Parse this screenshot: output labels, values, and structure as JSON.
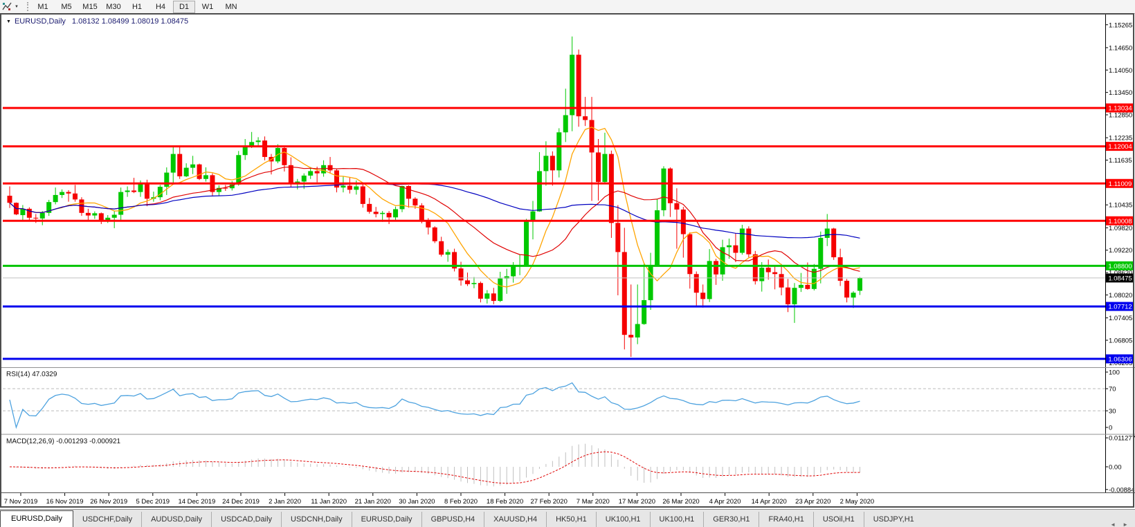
{
  "icons": {
    "caret_down": "▼",
    "title_triangle": "▼",
    "scroll_left": "◄",
    "scroll_right": "►"
  },
  "toolbar": {
    "timeframes": [
      "M1",
      "M5",
      "M15",
      "M30",
      "H1",
      "H4",
      "D1",
      "W1",
      "MN"
    ],
    "active_timeframe": "D1"
  },
  "chart": {
    "title_symbol": "EURUSD,Daily",
    "title_ohlc": "1.08132 1.08499 1.08019 1.08475",
    "price_axis_labels": [
      "1.15265",
      "1.14650",
      "1.14050",
      "1.13450",
      "1.12850",
      "1.12235",
      "1.11635",
      "1.10435",
      "1.09820",
      "1.09220",
      "1.08620",
      "1.08020",
      "1.07405",
      "1.06805",
      "1.06205"
    ],
    "hlines": [
      {
        "label": "1.13034",
        "price": 1.13034,
        "color": "#ff0000"
      },
      {
        "label": "1.12004",
        "price": 1.12004,
        "color": "#ff0000"
      },
      {
        "label": "1.11009",
        "price": 1.11009,
        "color": "#ff0000"
      },
      {
        "label": "1.10008",
        "price": 1.10008,
        "color": "#ff0000"
      },
      {
        "label": "1.08800",
        "price": 1.088,
        "color": "#00c400"
      },
      {
        "label": "1.07712",
        "price": 1.07712,
        "color": "#0000ee"
      },
      {
        "label": "1.06306",
        "price": 1.06306,
        "color": "#0000ee"
      }
    ],
    "bid": {
      "label": "1.08475",
      "price": 1.08475,
      "line_color": "#c0c0c0",
      "badge_bg": "#000000"
    },
    "date_labels": [
      "7 Nov 2019",
      "16 Nov 2019",
      "26 Nov 2019",
      "5 Dec 2019",
      "14 Dec 2019",
      "24 Dec 2019",
      "2 Jan 2020",
      "11 Jan 2020",
      "21 Jan 2020",
      "30 Jan 2020",
      "8 Feb 2020",
      "18 Feb 2020",
      "27 Feb 2020",
      "7 Mar 2020",
      "17 Mar 2020",
      "26 Mar 2020",
      "4 Apr 2020",
      "14 Apr 2020",
      "23 Apr 2020",
      "2 May 2020"
    ]
  },
  "rsi": {
    "label": "RSI(14)",
    "value": "47.0329",
    "period": 14,
    "axis_labels": [
      "100",
      "70",
      "30",
      "0"
    ],
    "axis_values": [
      100,
      70,
      30,
      0
    ],
    "levels": [
      70,
      30
    ],
    "line_color": "#4da2df"
  },
  "macd": {
    "label": "MACD(12,26,9)",
    "values": "-0.001293 -0.000921",
    "fast": 12,
    "slow": 26,
    "signal": 9,
    "axis_labels": [
      {
        "text": "0.011277",
        "v": 0.011277
      },
      {
        "text": "0.00",
        "v": 0
      },
      {
        "text": "-0.008845",
        "v": -0.008845
      }
    ],
    "hist_color": "#bfbfbf",
    "signal_color": "#e00000",
    "range": [
      -0.0089,
      0.0113
    ]
  },
  "tabs": {
    "items": [
      "EURUSD,Daily",
      "USDCHF,Daily",
      "AUDUSD,Daily",
      "USDCAD,Daily",
      "USDCNH,Daily",
      "EURUSD,Daily",
      "GBPUSD,H4",
      "XAUUSD,H4",
      "HK50,H1",
      "UK100,H1",
      "UK100,H1",
      "GER30,H1",
      "FRA40,H1",
      "USOil,H1",
      "USDJPY,H1"
    ],
    "active_index": 0
  },
  "chart_data": {
    "type": "candlestick",
    "symbol": "EURUSD",
    "timeframe": "Daily",
    "up_color": "#00c800",
    "down_color": "#f50000",
    "price_range": [
      1.061,
      1.1552
    ],
    "moving_averages": [
      {
        "period": 8,
        "color": "#ffa400"
      },
      {
        "period": 20,
        "color": "#e00000"
      },
      {
        "period": 50,
        "color": "#0000c0"
      }
    ],
    "ohlc": [
      [
        1.1068,
        1.1093,
        1.1035,
        1.1049
      ],
      [
        1.1049,
        1.105,
        1.1016,
        1.1018
      ],
      [
        1.1016,
        1.1043,
        1.1002,
        1.1033
      ],
      [
        1.1033,
        1.1037,
        1.1002,
        1.1009
      ],
      [
        1.1009,
        1.1019,
        1.0995,
        1.1007
      ],
      [
        1.1007,
        1.1027,
        1.0989,
        1.1022
      ],
      [
        1.1022,
        1.1057,
        1.1014,
        1.1051
      ],
      [
        1.1051,
        1.109,
        1.1045,
        1.107
      ],
      [
        1.107,
        1.1085,
        1.1062,
        1.1078
      ],
      [
        1.1078,
        1.1083,
        1.1052,
        1.1074
      ],
      [
        1.1074,
        1.1097,
        1.1052,
        1.1058
      ],
      [
        1.1058,
        1.1064,
        1.1014,
        1.1022
      ],
      [
        1.1022,
        1.1033,
        1.1003,
        1.1015
      ],
      [
        1.1015,
        1.1026,
        1.1006,
        1.1021
      ],
      [
        1.1021,
        1.1023,
        1.0992,
        1.1001
      ],
      [
        1.1001,
        1.1016,
        1.0995,
        1.1009
      ],
      [
        1.1009,
        1.1028,
        1.0981,
        1.1017
      ],
      [
        1.1017,
        1.109,
        1.1003,
        1.1078
      ],
      [
        1.1078,
        1.1093,
        1.1065,
        1.1082
      ],
      [
        1.1082,
        1.1116,
        1.1075,
        1.1078
      ],
      [
        1.1078,
        1.1109,
        1.1065,
        1.1103
      ],
      [
        1.1103,
        1.1111,
        1.104,
        1.106
      ],
      [
        1.106,
        1.1079,
        1.1052,
        1.1064
      ],
      [
        1.1064,
        1.1097,
        1.1056,
        1.1092
      ],
      [
        1.1092,
        1.1144,
        1.107,
        1.113
      ],
      [
        1.113,
        1.1199,
        1.1102,
        1.118
      ],
      [
        1.118,
        1.12,
        1.1113,
        1.112
      ],
      [
        1.112,
        1.1155,
        1.1118,
        1.1143
      ],
      [
        1.1143,
        1.1175,
        1.1126,
        1.1152
      ],
      [
        1.1152,
        1.1154,
        1.111,
        1.1113
      ],
      [
        1.1113,
        1.1144,
        1.1106,
        1.1123
      ],
      [
        1.1123,
        1.1128,
        1.1066,
        1.1078
      ],
      [
        1.1078,
        1.1096,
        1.1069,
        1.1089
      ],
      [
        1.1089,
        1.1097,
        1.1081,
        1.1088
      ],
      [
        1.1088,
        1.1107,
        1.1082,
        1.1098
      ],
      [
        1.1098,
        1.1188,
        1.1095,
        1.1177
      ],
      [
        1.1177,
        1.122,
        1.1164,
        1.1199
      ],
      [
        1.1199,
        1.1239,
        1.1196,
        1.1212
      ],
      [
        1.1212,
        1.1225,
        1.1203,
        1.1216
      ],
      [
        1.1216,
        1.1227,
        1.1163,
        1.1172
      ],
      [
        1.1172,
        1.118,
        1.1125,
        1.116
      ],
      [
        1.116,
        1.1206,
        1.1155,
        1.1196
      ],
      [
        1.1196,
        1.1199,
        1.1133,
        1.115
      ],
      [
        1.115,
        1.1171,
        1.1092,
        1.1103
      ],
      [
        1.1103,
        1.1113,
        1.1085,
        1.1106
      ],
      [
        1.1106,
        1.1128,
        1.1086,
        1.1122
      ],
      [
        1.1122,
        1.1145,
        1.1113,
        1.1134
      ],
      [
        1.1134,
        1.1146,
        1.1104,
        1.1128
      ],
      [
        1.1128,
        1.1163,
        1.1119,
        1.115
      ],
      [
        1.115,
        1.1172,
        1.1128,
        1.1136
      ],
      [
        1.1136,
        1.1141,
        1.1077,
        1.109
      ],
      [
        1.109,
        1.1119,
        1.1077,
        1.1095
      ],
      [
        1.1095,
        1.1118,
        1.1074,
        1.1084
      ],
      [
        1.1084,
        1.1109,
        1.1071,
        1.1093
      ],
      [
        1.1093,
        1.11,
        1.1036,
        1.1046
      ],
      [
        1.1046,
        1.1062,
        1.102,
        1.1025
      ],
      [
        1.1025,
        1.1038,
        1.101,
        1.1019
      ],
      [
        1.1019,
        1.1027,
        1.0998,
        1.1022
      ],
      [
        1.1022,
        1.1027,
        1.0992,
        1.101
      ],
      [
        1.101,
        1.1039,
        1.1001,
        1.1032
      ],
      [
        1.1032,
        1.1095,
        1.1024,
        1.1094
      ],
      [
        1.1094,
        1.1096,
        1.1036,
        1.106
      ],
      [
        1.106,
        1.1064,
        1.1033,
        1.1042
      ],
      [
        1.1042,
        1.1048,
        1.0994,
        1.1
      ],
      [
        1.1,
        1.1008,
        1.0964,
        1.0983
      ],
      [
        1.0983,
        1.0986,
        1.0941,
        1.0946
      ],
      [
        1.0946,
        1.0958,
        1.0905,
        1.091
      ],
      [
        1.091,
        1.0924,
        1.0891,
        1.0917
      ],
      [
        1.0917,
        1.0926,
        1.0865,
        1.0873
      ],
      [
        1.0873,
        1.0891,
        1.0827,
        1.0841
      ],
      [
        1.0841,
        1.0862,
        1.0826,
        1.0831
      ],
      [
        1.0831,
        1.085,
        1.082,
        1.0834
      ],
      [
        1.0834,
        1.0838,
        1.0782,
        1.0792
      ],
      [
        1.0792,
        1.0815,
        1.0779,
        1.0806
      ],
      [
        1.0806,
        1.0821,
        1.0777,
        1.0786
      ],
      [
        1.0786,
        1.0864,
        1.0783,
        1.0846
      ],
      [
        1.0846,
        1.0872,
        1.0805,
        1.0852
      ],
      [
        1.0852,
        1.089,
        1.0835,
        1.088
      ],
      [
        1.088,
        1.091,
        1.0855,
        1.0881
      ],
      [
        1.0881,
        1.1006,
        1.0878,
        1.0999
      ],
      [
        1.0999,
        1.1054,
        1.0951,
        1.1026
      ],
      [
        1.1026,
        1.1185,
        1.1025,
        1.1134
      ],
      [
        1.1134,
        1.1214,
        1.1095,
        1.1175
      ],
      [
        1.1175,
        1.1187,
        1.1095,
        1.1136
      ],
      [
        1.1136,
        1.1249,
        1.1117,
        1.1238
      ],
      [
        1.1238,
        1.1355,
        1.1212,
        1.1284
      ],
      [
        1.1284,
        1.1495,
        1.1241,
        1.1446
      ],
      [
        1.1446,
        1.146,
        1.1253,
        1.1281
      ],
      [
        1.1281,
        1.1333,
        1.1255,
        1.1271
      ],
      [
        1.1271,
        1.1333,
        1.1054,
        1.1184
      ],
      [
        1.1184,
        1.122,
        1.1055,
        1.1105
      ],
      [
        1.1105,
        1.1237,
        1.11,
        1.118
      ],
      [
        1.118,
        1.1189,
        1.0955,
        1.0995
      ],
      [
        1.0995,
        1.1043,
        1.0801,
        1.0917
      ],
      [
        1.0917,
        1.0982,
        1.0656,
        1.0695
      ],
      [
        1.0695,
        1.083,
        1.0636,
        1.0688
      ],
      [
        1.0688,
        1.083,
        1.067,
        1.0724
      ],
      [
        1.0724,
        1.0888,
        1.0722,
        1.0788
      ],
      [
        1.0788,
        1.0915,
        1.0762,
        1.0882
      ],
      [
        1.0882,
        1.1059,
        1.0878,
        1.1029
      ],
      [
        1.1029,
        1.1147,
        1.1013,
        1.1141
      ],
      [
        1.1141,
        1.1144,
        1.1011,
        1.1048
      ],
      [
        1.1048,
        1.1088,
        1.0926,
        1.1031
      ],
      [
        1.1031,
        1.1038,
        1.0902,
        1.0965
      ],
      [
        1.0965,
        1.097,
        1.0819,
        1.0858
      ],
      [
        1.0858,
        1.0865,
        1.0773,
        1.0808
      ],
      [
        1.0808,
        1.083,
        1.0768,
        1.0791
      ],
      [
        1.0791,
        1.0925,
        1.0783,
        1.0893
      ],
      [
        1.0893,
        1.0899,
        1.0829,
        1.0857
      ],
      [
        1.0857,
        1.095,
        1.084,
        1.093
      ],
      [
        1.093,
        1.0953,
        1.0899,
        1.0935
      ],
      [
        1.0935,
        1.0968,
        1.089,
        1.0915
      ],
      [
        1.0915,
        1.099,
        1.091,
        1.098
      ],
      [
        1.098,
        1.0986,
        1.0903,
        1.0911
      ],
      [
        1.0911,
        1.092,
        1.083,
        1.0839
      ],
      [
        1.0839,
        1.089,
        1.0811,
        1.0875
      ],
      [
        1.0875,
        1.0897,
        1.0843,
        1.0863
      ],
      [
        1.0863,
        1.0878,
        1.0817,
        1.0858
      ],
      [
        1.0858,
        1.0885,
        1.0801,
        1.0822
      ],
      [
        1.0822,
        1.0845,
        1.0756,
        1.0777
      ],
      [
        1.0777,
        1.0834,
        1.0727,
        1.0821
      ],
      [
        1.0821,
        1.0861,
        1.081,
        1.0829
      ],
      [
        1.0829,
        1.0889,
        1.0816,
        1.0818
      ],
      [
        1.0818,
        1.0885,
        1.0814,
        1.0872
      ],
      [
        1.0872,
        1.0972,
        1.0833,
        1.0955
      ],
      [
        1.0955,
        1.1019,
        1.0933,
        1.098
      ],
      [
        1.098,
        1.0982,
        1.0896,
        1.0903
      ],
      [
        1.0903,
        1.0926,
        1.0826,
        1.084
      ],
      [
        1.084,
        1.0845,
        1.0782,
        1.0795
      ],
      [
        1.0795,
        1.0812,
        1.0767,
        1.0808
      ],
      [
        1.08132,
        1.08499,
        1.08019,
        1.08475
      ]
    ]
  }
}
